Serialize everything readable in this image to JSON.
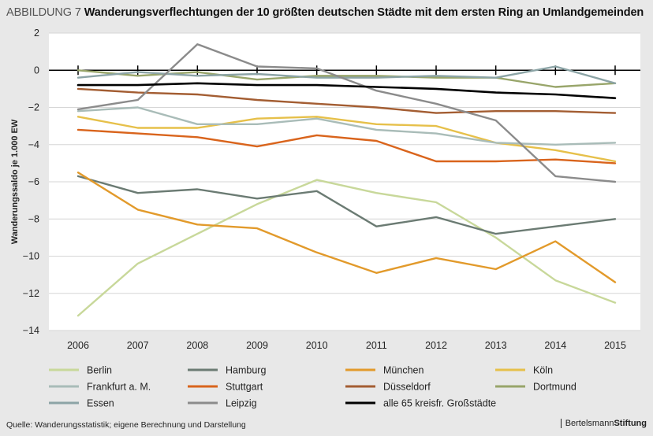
{
  "header": {
    "figure_label": "ABBILDUNG 7",
    "title": "Wanderungsverflechtungen der 10 größten deutschen Städte mit dem ersten Ring an Umlandgemeinden"
  },
  "footer": {
    "source": "Quelle: Wanderungsstatistik; eigene Berechnung und Darstellung",
    "brand_part1": "Bertelsmann",
    "brand_part2": "Stiftung"
  },
  "chart_data": {
    "type": "line",
    "title": "Wanderungsverflechtungen der 10 größten deutschen Städte mit dem ersten Ring an Umlandgemeinden",
    "xlabel": "",
    "ylabel": "Wanderungssaldo je 1.000 EW",
    "x": [
      "2006",
      "2007",
      "2008",
      "2009",
      "2010",
      "2011",
      "2012",
      "2013",
      "2014",
      "2015"
    ],
    "yticks": [
      2,
      0,
      -2,
      -4,
      -6,
      -8,
      -10,
      -12,
      -14
    ],
    "ylim": [
      -14,
      2
    ],
    "grid": true,
    "legend_position": "bottom",
    "series": [
      {
        "name": "Berlin",
        "color": "#c8d89a",
        "values": [
          -13.2,
          -10.4,
          -8.8,
          -7.2,
          -5.9,
          -6.6,
          -7.1,
          -9.0,
          -11.3,
          -12.5
        ]
      },
      {
        "name": "Hamburg",
        "color": "#6b7b73",
        "values": [
          -5.7,
          -6.6,
          -6.4,
          -6.9,
          -6.5,
          -8.4,
          -7.9,
          -8.8,
          -8.4,
          -8.0
        ]
      },
      {
        "name": "München",
        "color": "#e29a2b",
        "values": [
          -5.5,
          -7.5,
          -8.3,
          -8.5,
          -9.8,
          -10.9,
          -10.1,
          -10.7,
          -9.2,
          -11.4
        ]
      },
      {
        "name": "Köln",
        "color": "#e6c04a",
        "values": [
          -2.5,
          -3.1,
          -3.1,
          -2.6,
          -2.5,
          -2.9,
          -3.0,
          -3.9,
          -4.3,
          -4.9
        ]
      },
      {
        "name": "Frankfurt a. M.",
        "color": "#a9bcb8",
        "values": [
          -2.2,
          -2.0,
          -2.9,
          -2.9,
          -2.6,
          -3.2,
          -3.4,
          -3.9,
          -4.0,
          -3.9
        ]
      },
      {
        "name": "Stuttgart",
        "color": "#d9641c",
        "values": [
          -3.2,
          -3.4,
          -3.6,
          -4.1,
          -3.5,
          -3.8,
          -4.9,
          -4.9,
          -4.8,
          -5.0
        ]
      },
      {
        "name": "Düsseldorf",
        "color": "#a35d32",
        "values": [
          -1.0,
          -1.2,
          -1.3,
          -1.6,
          -1.8,
          -2.0,
          -2.3,
          -2.2,
          -2.2,
          -2.3
        ]
      },
      {
        "name": "Dortmund",
        "color": "#98a56a",
        "values": [
          0.0,
          -0.3,
          -0.1,
          -0.5,
          -0.3,
          -0.3,
          -0.4,
          -0.4,
          -0.9,
          -0.7
        ]
      },
      {
        "name": "Essen",
        "color": "#8ca4a6",
        "values": [
          -0.4,
          -0.1,
          -0.3,
          -0.2,
          -0.4,
          -0.4,
          -0.3,
          -0.4,
          0.2,
          -0.7
        ]
      },
      {
        "name": "Leipzig",
        "color": "#8b8b8b",
        "values": [
          -2.1,
          -1.6,
          1.4,
          0.2,
          0.1,
          -1.1,
          -1.8,
          -2.7,
          -5.7,
          -6.0
        ]
      },
      {
        "name": "alle 65 kreisfr. Großstädte",
        "color": "#000000",
        "values": [
          -0.8,
          -0.8,
          -0.7,
          -0.8,
          -0.8,
          -0.9,
          -1.0,
          -1.2,
          -1.3,
          -1.5
        ]
      }
    ]
  }
}
